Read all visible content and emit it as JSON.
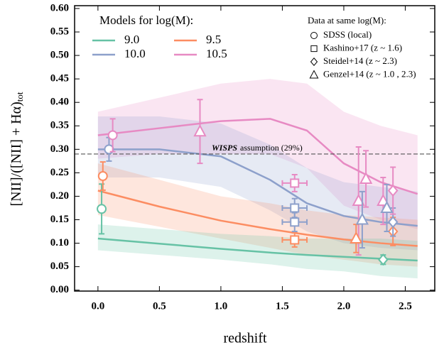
{
  "chart_data": {
    "type": "line",
    "x_label": "redshift",
    "y_label": "[NII]/([NII] + Hα)",
    "y_label_subscript": "tot",
    "xlim": [
      -0.19,
      2.74
    ],
    "ylim": [
      -0.002,
      0.606
    ],
    "xticks": [
      {
        "value": 0,
        "label": "0.0"
      },
      0.5,
      {
        "value": 1,
        "label": "1.0"
      },
      1.5,
      {
        "value": 2,
        "label": "2.0"
      },
      2.5
    ],
    "yticks": [
      {
        "value": 0,
        "label": "0.00"
      },
      {
        "value": 0.05,
        "label": "0.05"
      },
      {
        "value": 0.1,
        "label": "0.10"
      },
      {
        "value": 0.15,
        "label": "0.15"
      },
      {
        "value": 0.2,
        "label": "0.20"
      },
      {
        "value": 0.25,
        "label": "0.25"
      },
      {
        "value": 0.3,
        "label": "0.30"
      },
      {
        "value": 0.35,
        "label": "0.35"
      },
      {
        "value": 0.4,
        "label": "0.40"
      },
      {
        "value": 0.45,
        "label": "0.45"
      },
      {
        "value": 0.5,
        "label": "0.50"
      },
      {
        "value": 0.55,
        "label": "0.55"
      },
      {
        "value": 0.6,
        "label": "0.60"
      }
    ],
    "legend_title": "Models for log(M):",
    "x": [
      0,
      0.5,
      1.0,
      1.4,
      1.7,
      2.0,
      2.3,
      2.6
    ],
    "series": [
      {
        "name": "9.0",
        "color": "#66c2a5",
        "values": [
          0.11,
          0.099,
          0.088,
          0.08,
          0.075,
          0.071,
          0.067,
          0.063
        ],
        "upper": [
          0.14,
          0.13,
          0.12,
          0.115,
          0.11,
          0.11,
          0.11,
          0.105
        ],
        "lower": [
          0.085,
          0.075,
          0.065,
          0.055,
          0.045,
          0.04,
          0.03,
          0.025
        ]
      },
      {
        "name": "9.5",
        "color": "#fc8d62",
        "values": [
          0.212,
          0.178,
          0.148,
          0.13,
          0.118,
          0.108,
          0.1,
          0.094
        ],
        "upper": [
          0.27,
          0.235,
          0.2,
          0.185,
          0.17,
          0.16,
          0.155,
          0.15
        ],
        "lower": [
          0.16,
          0.135,
          0.11,
          0.09,
          0.075,
          0.065,
          0.055,
          0.05
        ]
      },
      {
        "name": "10.0",
        "color": "#8da0cb",
        "values": [
          0.3,
          0.3,
          0.285,
          0.235,
          0.185,
          0.158,
          0.145,
          0.137
        ],
        "upper": [
          0.37,
          0.37,
          0.355,
          0.31,
          0.26,
          0.23,
          0.22,
          0.21
        ],
        "lower": [
          0.24,
          0.24,
          0.22,
          0.17,
          0.125,
          0.1,
          0.09,
          0.085
        ]
      },
      {
        "name": "10.5",
        "color": "#e78ac3",
        "values": [
          0.33,
          0.345,
          0.36,
          0.365,
          0.34,
          0.27,
          0.23,
          0.205
        ],
        "upper": [
          0.38,
          0.41,
          0.44,
          0.45,
          0.44,
          0.38,
          0.35,
          0.33
        ],
        "lower": [
          0.28,
          0.29,
          0.29,
          0.29,
          0.26,
          0.18,
          0.15,
          0.13
        ]
      }
    ],
    "observations_title": "Data at same log(M):",
    "observations": [
      {
        "name": "SDSS (local)",
        "marker": "circle",
        "points": [
          {
            "x": 0.03,
            "y": 0.173,
            "yerr": 0.053,
            "color": "#66c2a5"
          },
          {
            "x": 0.04,
            "y": 0.243,
            "yerr": 0.03,
            "color": "#fc8d62"
          },
          {
            "x": 0.09,
            "y": 0.3,
            "yerr": 0.025,
            "color": "#8da0cb"
          },
          {
            "x": 0.12,
            "y": 0.33,
            "yerr": 0.035,
            "color": "#e78ac3"
          }
        ]
      },
      {
        "name": "Kashino+17 (z ~ 1.6)",
        "marker": "square",
        "points": [
          {
            "x": 1.6,
            "y": 0.107,
            "yerr": 0.015,
            "xerr": 0.1,
            "color": "#fc8d62"
          },
          {
            "x": 1.6,
            "y": 0.145,
            "yerr": 0.02,
            "xerr": 0.1,
            "color": "#8da0cb"
          },
          {
            "x": 1.6,
            "y": 0.175,
            "yerr": 0.02,
            "xerr": 0.1,
            "color": "#8da0cb"
          },
          {
            "x": 1.6,
            "y": 0.228,
            "yerr": 0.018,
            "xerr": 0.1,
            "color": "#e78ac3"
          }
        ]
      },
      {
        "name": "Steidel+14 (z ~ 2.3)",
        "marker": "diamond",
        "points": [
          {
            "x": 2.32,
            "y": 0.065,
            "yerr": 0.01,
            "color": "#66c2a5"
          },
          {
            "x": 2.4,
            "y": 0.125,
            "yerr": 0.03,
            "color": "#fc8d62"
          },
          {
            "x": 2.4,
            "y": 0.145,
            "yerr": 0.03,
            "color": "#8da0cb"
          },
          {
            "x": 2.4,
            "y": 0.212,
            "yerr": 0.05,
            "color": "#e78ac3"
          }
        ]
      },
      {
        "name": "Genzel+14 (z ~ 1.0 , 2.3)",
        "marker": "triangle",
        "points": [
          {
            "x": 0.83,
            "y": 0.338,
            "yerr": 0.068,
            "color": "#e78ac3"
          },
          {
            "x": 2.12,
            "y": 0.19,
            "yerr": 0.115,
            "color": "#e78ac3"
          },
          {
            "x": 2.18,
            "y": 0.237,
            "yerr": 0.06,
            "color": "#e78ac3"
          },
          {
            "x": 2.32,
            "y": 0.19,
            "yerr": 0.05,
            "color": "#e78ac3"
          },
          {
            "x": 2.35,
            "y": 0.175,
            "yerr": 0.05,
            "color": "#8da0cb"
          },
          {
            "x": 2.1,
            "y": 0.11,
            "yerr": 0.03,
            "color": "#fc8d62"
          },
          {
            "x": 2.15,
            "y": 0.15,
            "yerr": 0.06,
            "color": "#8da0cb"
          }
        ]
      }
    ],
    "reference_line": {
      "value": 0.29,
      "label_bold": "WISPS",
      "label": "assumption (29%)"
    }
  }
}
